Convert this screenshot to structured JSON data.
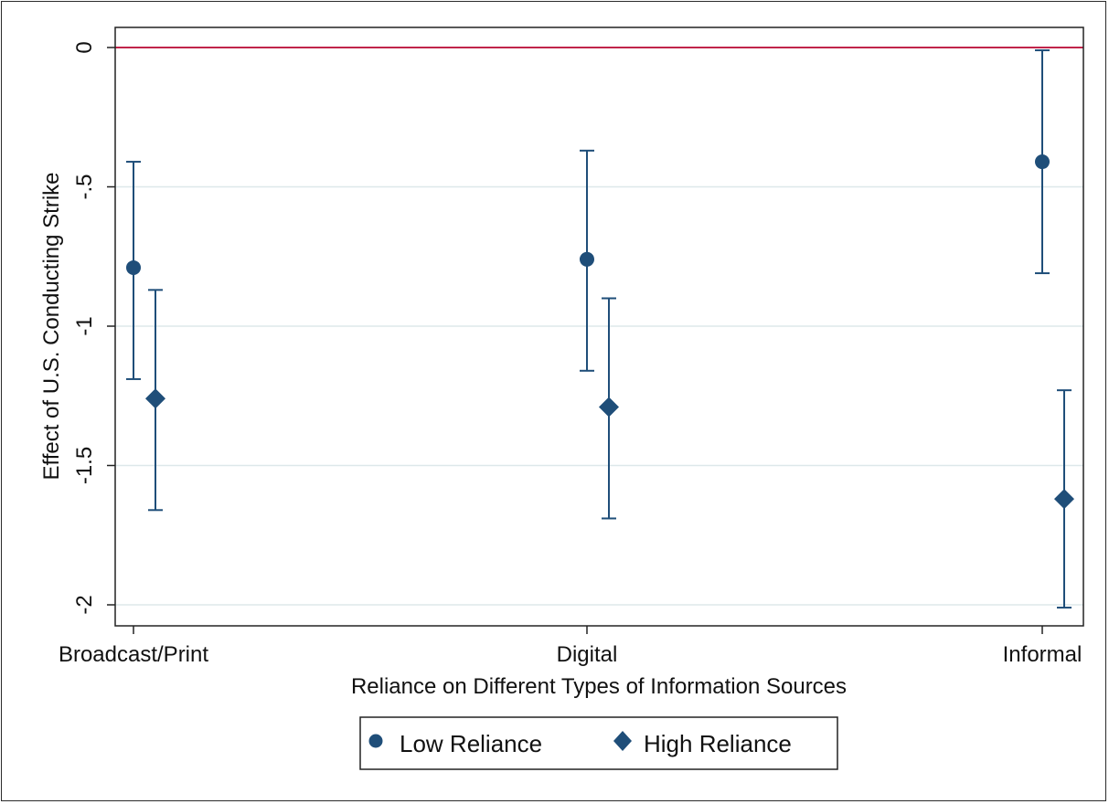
{
  "chart_data": {
    "type": "scatter",
    "title": "",
    "xlabel": "Reliance on Different Types of Information Sources",
    "ylabel": "Effect of U.S. Conducting Strike",
    "categories": [
      "Broadcast/Print",
      "Digital",
      "Informal"
    ],
    "ylim": [
      -2.05,
      0.05
    ],
    "yticks": [
      0,
      -0.5,
      -1,
      -1.5,
      -2
    ],
    "ytick_labels": [
      "0",
      "-.5",
      "-1",
      "-1.5",
      "-2"
    ],
    "grid": true,
    "reference_line": {
      "y": 0,
      "color": "#c0244a"
    },
    "legend_position": "bottom",
    "series": [
      {
        "name": "Low Reliance",
        "marker": "circle",
        "color": "#1f4e79",
        "values": [
          -0.79,
          -0.76,
          -0.41
        ],
        "ci_low": [
          -1.19,
          -1.16,
          -0.81
        ],
        "ci_high": [
          -0.41,
          -0.37,
          -0.01
        ]
      },
      {
        "name": "High Reliance",
        "marker": "diamond",
        "color": "#1f4e79",
        "values": [
          -1.26,
          -1.29,
          -1.62
        ],
        "ci_low": [
          -1.66,
          -1.69,
          -2.01
        ],
        "ci_high": [
          -0.87,
          -0.9,
          -1.23
        ]
      }
    ]
  }
}
